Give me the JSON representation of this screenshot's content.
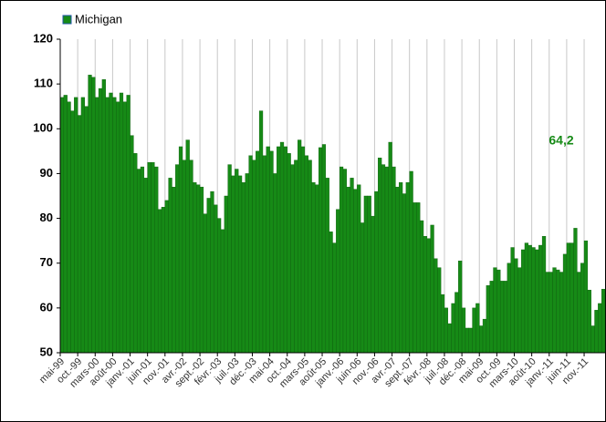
{
  "chart_data": {
    "type": "bar",
    "categories": [
      "mai-99",
      null,
      null,
      null,
      null,
      "oct.-99",
      null,
      null,
      null,
      null,
      "mars-00",
      null,
      null,
      null,
      null,
      "août-00",
      null,
      null,
      null,
      null,
      "janv.-01",
      null,
      null,
      null,
      null,
      "juin-01",
      null,
      null,
      null,
      null,
      "nov.-01",
      null,
      null,
      null,
      null,
      "avr.-02",
      null,
      null,
      null,
      null,
      "sept.-02",
      null,
      null,
      null,
      null,
      "févr.-03",
      null,
      null,
      null,
      null,
      "juil.-03",
      null,
      null,
      null,
      null,
      "déc.-03",
      null,
      null,
      null,
      null,
      "mai-04",
      null,
      null,
      null,
      null,
      "oct.-04",
      null,
      null,
      null,
      null,
      "mars-05",
      null,
      null,
      null,
      null,
      "août-05",
      null,
      null,
      null,
      null,
      "janv.-06",
      null,
      null,
      null,
      null,
      "juin-06",
      null,
      null,
      null,
      null,
      "nov.-06",
      null,
      null,
      null,
      null,
      "avr.-07",
      null,
      null,
      null,
      null,
      "sept.-07",
      null,
      null,
      null,
      null,
      "févr.-08",
      null,
      null,
      null,
      null,
      "juil.-08",
      null,
      null,
      null,
      null,
      "déc.-08",
      null,
      null,
      null,
      null,
      "mai-09",
      null,
      null,
      null,
      null,
      "oct.-09",
      null,
      null,
      null,
      null,
      "mars-10",
      null,
      null,
      null,
      null,
      "août-10",
      null,
      null,
      null,
      null,
      "janv.-11",
      null,
      null,
      null,
      null,
      "juin-11",
      null,
      null,
      null,
      null,
      "nov.-11",
      null,
      null,
      null,
      null,
      null
    ],
    "series": [
      {
        "name": "Michigan",
        "color": "#168a16",
        "values": [
          107,
          107.5,
          106,
          104,
          107,
          103,
          107,
          105,
          112,
          111.5,
          107,
          109,
          111,
          107,
          108,
          107,
          106,
          108,
          106,
          107.5,
          98.5,
          94.5,
          91,
          91.5,
          89,
          92.5,
          92.5,
          91.5,
          82,
          82.5,
          84,
          89,
          87,
          92,
          96,
          93,
          97.5,
          93,
          88,
          87.5,
          87,
          81,
          84.5,
          86,
          83,
          80,
          77.5,
          85,
          92,
          89.5,
          91,
          89.5,
          88,
          90,
          94,
          93,
          95,
          104,
          94,
          96,
          95,
          90,
          96,
          97,
          96,
          94.5,
          92,
          93,
          97.5,
          96,
          94,
          93,
          88,
          87.5,
          95.8,
          96.5,
          89,
          77,
          74.5,
          82,
          91.5,
          91,
          87,
          89,
          86.5,
          87.5,
          79,
          85,
          85,
          80.5,
          86,
          93.5,
          92,
          91.5,
          97,
          91.5,
          87,
          88,
          85.5,
          88,
          90.5,
          83.5,
          83.5,
          79.5,
          76,
          75.5,
          78.5,
          71,
          69,
          63,
          60,
          56.5,
          61,
          63.5,
          70.5,
          60,
          55.5,
          55.5,
          60,
          61,
          56,
          57.5,
          65,
          66,
          69,
          68.5,
          66,
          66,
          70,
          73.5,
          71,
          69,
          73,
          74.5,
          74,
          73.5,
          73,
          74,
          76,
          68,
          68,
          69,
          68.5,
          68,
          72,
          74.5,
          74.5,
          77.8,
          68,
          70,
          75,
          64,
          56,
          59.5,
          61,
          64.2
        ],
        "value_labels": [
          null,
          null,
          null,
          null,
          null,
          null,
          null,
          null,
          null,
          null,
          null,
          null,
          null,
          null,
          null,
          null,
          null,
          null,
          null,
          null,
          null,
          null,
          null,
          null,
          null,
          null,
          null,
          null,
          null,
          null,
          null,
          null,
          null,
          null,
          null,
          null,
          null,
          null,
          null,
          null,
          null,
          null,
          null,
          null,
          null,
          null,
          null,
          null,
          null,
          null,
          null,
          null,
          null,
          null,
          null,
          null,
          null,
          null,
          null,
          null,
          null,
          null,
          null,
          null,
          null,
          null,
          null,
          null,
          null,
          null,
          null,
          null,
          null,
          null,
          null,
          null,
          null,
          null,
          null,
          null,
          null,
          null,
          null,
          null,
          null,
          null,
          null,
          null,
          null,
          null,
          null,
          null,
          null,
          null,
          null,
          null,
          null,
          null,
          null,
          null,
          null,
          null,
          null,
          null,
          null,
          null,
          null,
          null,
          null,
          null,
          null,
          null,
          null,
          null,
          null,
          null,
          null,
          null,
          null,
          null,
          null,
          null,
          null,
          null,
          null,
          null,
          null,
          null,
          null,
          null,
          null,
          null,
          null,
          null,
          null,
          null,
          null,
          null,
          null,
          null,
          null,
          null,
          null,
          null,
          null,
          null,
          null,
          null,
          null,
          null,
          null,
          null,
          null,
          null,
          null,
          "64,2"
        ]
      }
    ],
    "ylim": [
      50,
      120
    ],
    "yticks": [
      50,
      60,
      70,
      80,
      90,
      100,
      110,
      120
    ],
    "grid": "x",
    "legend": "top-left"
  }
}
